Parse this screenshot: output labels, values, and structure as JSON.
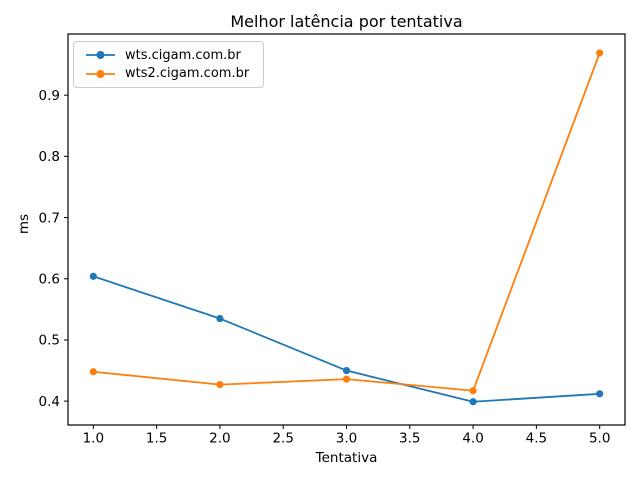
{
  "chart_data": {
    "type": "line",
    "title": "Melhor latência por tentativa",
    "xlabel": "Tentativa",
    "ylabel": "ms",
    "x": [
      1,
      2,
      3,
      4,
      5
    ],
    "series": [
      {
        "name": "wts.cigam.com.br",
        "color": "#1f77b4",
        "values": [
          0.604,
          0.535,
          0.45,
          0.399,
          0.412
        ]
      },
      {
        "name": "wts2.cigam.com.br",
        "color": "#ff7f0e",
        "values": [
          0.448,
          0.427,
          0.436,
          0.417,
          0.969
        ]
      }
    ],
    "xticks": [
      1.0,
      1.5,
      2.0,
      2.5,
      3.0,
      3.5,
      4.0,
      4.5,
      5.0
    ],
    "xtick_labels": [
      "1.0",
      "1.5",
      "2.0",
      "2.5",
      "3.0",
      "3.5",
      "4.0",
      "4.5",
      "5.0"
    ],
    "yticks": [
      0.4,
      0.5,
      0.6,
      0.7,
      0.8,
      0.9
    ],
    "ytick_labels": [
      "0.4",
      "0.5",
      "0.6",
      "0.7",
      "0.8",
      "0.9"
    ],
    "xlim": [
      0.8,
      5.2
    ],
    "ylim": [
      0.361,
      1.0
    ],
    "grid": false,
    "legend_position": "upper left",
    "marker": "circle",
    "background_color": "#ffffff",
    "text_color": "#000000",
    "spine_color": "#000000"
  }
}
